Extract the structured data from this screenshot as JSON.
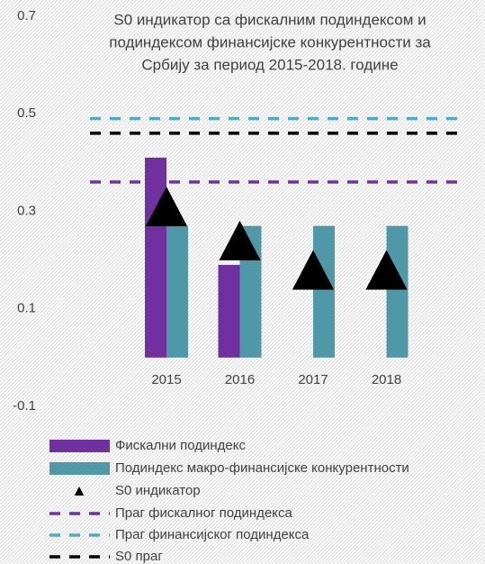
{
  "chart_data": {
    "type": "bar",
    "title": [
      "S0 индикатор са фискалним подиндексом и",
      "подиндексом финансијске конкурентности за",
      "Србију за период 2015-2018. године"
    ],
    "categories": [
      "2015",
      "2016",
      "2017",
      "2018"
    ],
    "series": [
      {
        "name": "Фискални подиндекс",
        "color": "#7030a0",
        "type": "bar",
        "values": [
          0.41,
          0.19,
          null,
          null
        ]
      },
      {
        "name": "Подиндекс макро-финансијске конкурентности",
        "color": "#4f98a8",
        "type": "bar",
        "values": [
          0.27,
          0.27,
          0.27,
          0.27
        ]
      },
      {
        "name": "S0 индикатор",
        "color": "#000000",
        "type": "triangle",
        "values": [
          0.31,
          0.24,
          0.18,
          0.18
        ]
      }
    ],
    "thresholds": [
      {
        "name": "Праг фискалног подиндекса",
        "color": "#7030a0",
        "value": 0.36
      },
      {
        "name": "Праг финансијског подиндекса",
        "color": "#4bacc6",
        "value": 0.49
      },
      {
        "name": "S0 праг",
        "color": "#000000",
        "value": 0.46
      }
    ],
    "ylim": [
      -0.1,
      0.7
    ],
    "yticks": [
      -0.1,
      0.1,
      0.3,
      0.5,
      0.7
    ],
    "grid": false
  }
}
